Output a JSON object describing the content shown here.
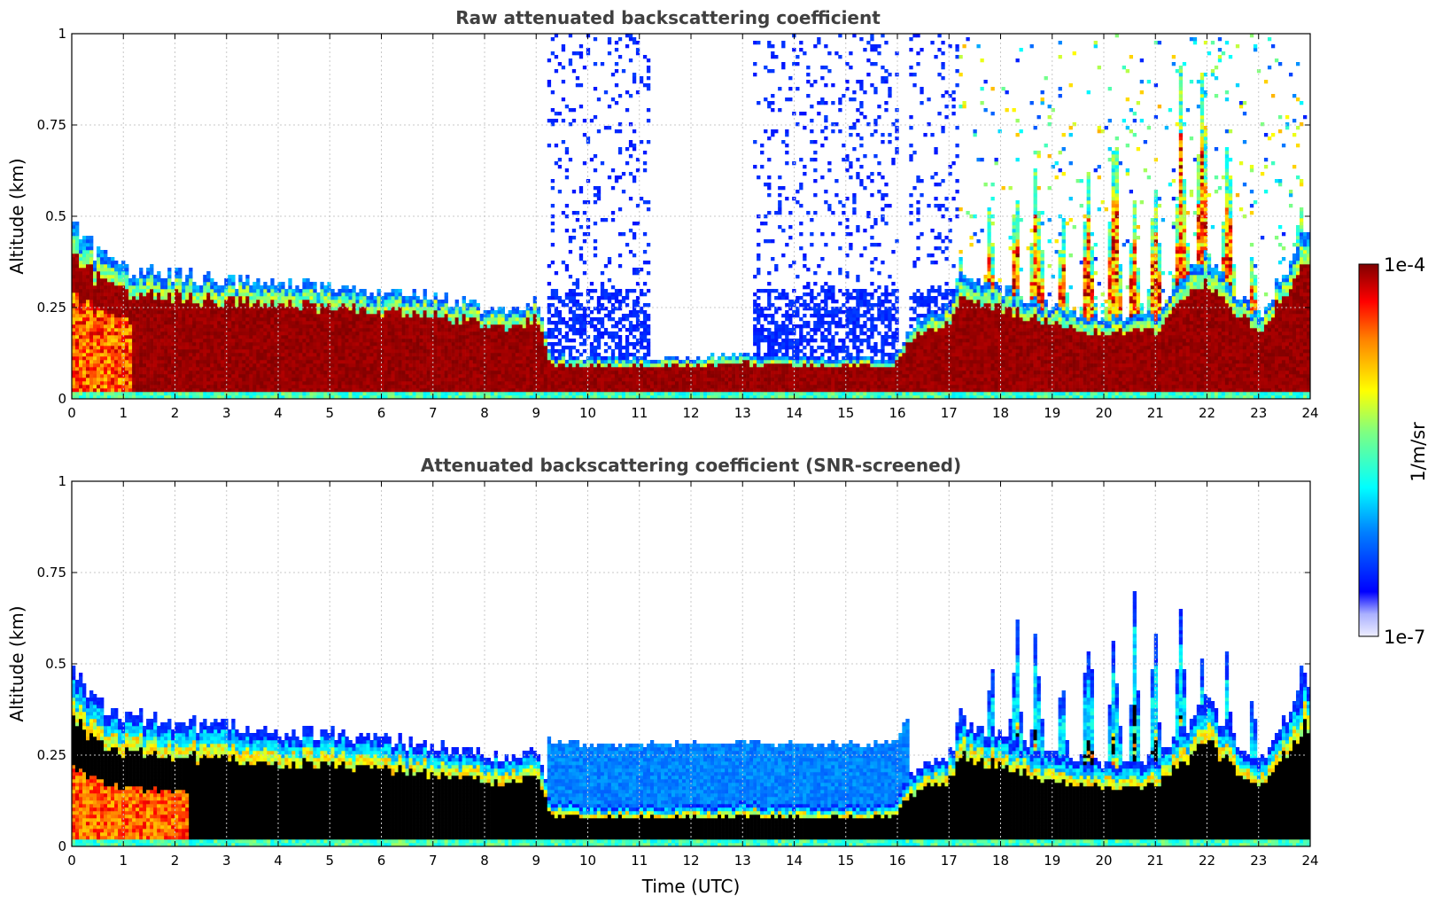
{
  "chart_data": [
    {
      "type": "heatmap",
      "title": "Raw attenuated backscattering coefficient",
      "xlabel": "",
      "ylabel": "Altitude (km)",
      "xlim": [
        0,
        24
      ],
      "ylim": [
        0,
        1
      ],
      "x_ticks": [
        "0",
        "1",
        "2",
        "3",
        "4",
        "5",
        "6",
        "7",
        "8",
        "9",
        "10",
        "11",
        "12",
        "13",
        "14",
        "15",
        "16",
        "17",
        "18",
        "19",
        "20",
        "21",
        "22",
        "23",
        "24"
      ],
      "y_ticks": [
        "0",
        "0.25",
        "0.5",
        "0.75",
        "1"
      ],
      "grid": true,
      "screened": false,
      "profile": {
        "time_h": [
          0,
          0.5,
          1,
          2,
          3,
          4,
          5,
          6,
          7,
          8,
          8.5,
          9,
          9.3,
          10,
          11,
          12,
          13,
          14,
          15,
          15.9,
          16.3,
          17,
          17.3,
          18,
          19,
          20,
          21,
          22,
          22.5,
          23,
          23.9,
          24
        ],
        "layer_top_km": [
          0.48,
          0.4,
          0.36,
          0.34,
          0.33,
          0.31,
          0.31,
          0.29,
          0.28,
          0.25,
          0.24,
          0.27,
          0.12,
          0.11,
          0.11,
          0.11,
          0.12,
          0.11,
          0.11,
          0.11,
          0.2,
          0.25,
          0.35,
          0.3,
          0.25,
          0.22,
          0.23,
          0.4,
          0.3,
          0.22,
          0.45,
          0.45
        ]
      },
      "high_noise": [
        {
          "start_h": 9.2,
          "end_h": 11.2
        },
        {
          "start_h": 13.2,
          "end_h": 16.0
        },
        {
          "start_h": 16.2,
          "end_h": 17.2
        }
      ],
      "plumes": [
        {
          "time_h": 17.2,
          "top_km": 0.45
        },
        {
          "time_h": 17.8,
          "top_km": 0.55
        },
        {
          "time_h": 18.3,
          "top_km": 0.6
        },
        {
          "time_h": 18.7,
          "top_km": 0.75
        },
        {
          "time_h": 19.2,
          "top_km": 0.5
        },
        {
          "time_h": 19.7,
          "top_km": 0.7
        },
        {
          "time_h": 20.2,
          "top_km": 0.85
        },
        {
          "time_h": 20.6,
          "top_km": 0.6
        },
        {
          "time_h": 21.0,
          "top_km": 0.7
        },
        {
          "time_h": 21.5,
          "top_km": 0.95
        },
        {
          "time_h": 21.9,
          "top_km": 1.0
        },
        {
          "time_h": 22.4,
          "top_km": 0.75
        },
        {
          "time_h": 22.9,
          "top_km": 0.45
        },
        {
          "time_h": 23.8,
          "top_km": 0.55
        }
      ]
    },
    {
      "type": "heatmap",
      "title": "Attenuated backscattering coefficient (SNR-screened)",
      "xlabel": "Time (UTC)",
      "ylabel": "Altitude (km)",
      "xlim": [
        0,
        24
      ],
      "ylim": [
        0,
        1
      ],
      "x_ticks": [
        "0",
        "1",
        "2",
        "3",
        "4",
        "5",
        "6",
        "7",
        "8",
        "9",
        "10",
        "11",
        "12",
        "13",
        "14",
        "15",
        "16",
        "17",
        "18",
        "19",
        "20",
        "21",
        "22",
        "23",
        "24"
      ],
      "y_ticks": [
        "0",
        "0.25",
        "0.5",
        "0.75",
        "1"
      ],
      "grid": true,
      "screened": true,
      "profile": {
        "time_h": [
          0,
          0.5,
          1,
          2,
          3,
          4,
          5,
          6,
          7,
          8,
          8.5,
          9,
          9.3,
          10,
          11,
          12,
          13,
          14,
          15,
          15.9,
          16.3,
          17,
          17.3,
          18,
          19,
          20,
          21,
          22,
          22.5,
          23,
          23.9,
          24
        ],
        "layer_top_km": [
          0.48,
          0.4,
          0.36,
          0.34,
          0.33,
          0.31,
          0.31,
          0.29,
          0.28,
          0.25,
          0.24,
          0.27,
          0.12,
          0.11,
          0.11,
          0.11,
          0.12,
          0.11,
          0.11,
          0.11,
          0.2,
          0.25,
          0.35,
          0.3,
          0.25,
          0.22,
          0.23,
          0.4,
          0.3,
          0.22,
          0.45,
          0.45
        ]
      },
      "plumes": [
        {
          "time_h": 17.2,
          "top_km": 0.45
        },
        {
          "time_h": 17.8,
          "top_km": 0.6
        },
        {
          "time_h": 18.3,
          "top_km": 0.65
        },
        {
          "time_h": 18.7,
          "top_km": 0.7
        },
        {
          "time_h": 19.2,
          "top_km": 0.55
        },
        {
          "time_h": 19.7,
          "top_km": 0.65
        },
        {
          "time_h": 20.2,
          "top_km": 0.7
        },
        {
          "time_h": 20.6,
          "top_km": 0.7
        },
        {
          "time_h": 21.0,
          "top_km": 0.65
        },
        {
          "time_h": 21.5,
          "top_km": 0.7
        },
        {
          "time_h": 21.9,
          "top_km": 0.6
        },
        {
          "time_h": 22.4,
          "top_km": 0.55
        },
        {
          "time_h": 22.9,
          "top_km": 0.45
        },
        {
          "time_h": 23.8,
          "top_km": 0.55
        }
      ]
    }
  ],
  "colorbar": {
    "label": "1/m/sr",
    "max_label": "1e-4",
    "min_label": "1e-7",
    "scale": "log",
    "range": [
      1e-07,
      0.0001
    ],
    "colormap": "jet"
  }
}
